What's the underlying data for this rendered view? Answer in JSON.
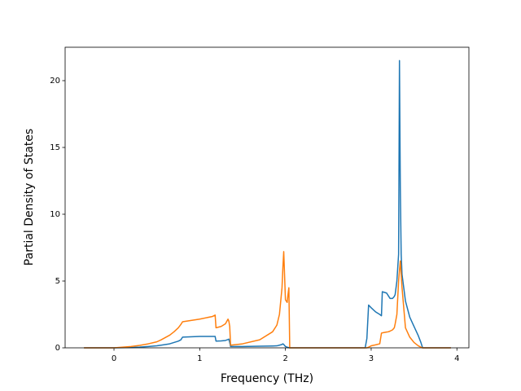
{
  "chart_data": {
    "type": "line",
    "x_label": "Frequency (THz)",
    "y_label": "Partial Density of States",
    "xlim": [
      -0.57,
      4.14
    ],
    "ylim": [
      0,
      22.5
    ],
    "xticks": [
      0,
      1,
      2,
      3,
      4
    ],
    "yticks": [
      0,
      5,
      10,
      15,
      20
    ],
    "x": [
      -0.35,
      0,
      0.2,
      0.3,
      0.4,
      0.5,
      0.55,
      0.65,
      0.7,
      0.75,
      0.78,
      0.8,
      1.0,
      1.15,
      1.18,
      1.19,
      1.25,
      1.3,
      1.33,
      1.34,
      1.35,
      1.36,
      1.5,
      1.7,
      1.85,
      1.9,
      1.93,
      1.96,
      1.97,
      1.98,
      2.0,
      2.02,
      2.03,
      2.04,
      2.05,
      2.93,
      2.95,
      2.97,
      3.0,
      3.05,
      3.1,
      3.12,
      3.13,
      3.18,
      3.2,
      3.22,
      3.25,
      3.27,
      3.28,
      3.3,
      3.32,
      3.33,
      3.34,
      3.35,
      3.36,
      3.4,
      3.45,
      3.5,
      3.55,
      3.58,
      3.6,
      3.93
    ],
    "series": [
      {
        "color": "#1f77b4",
        "values": [
          0,
          0,
          0.02,
          0.05,
          0.1,
          0.15,
          0.2,
          0.3,
          0.4,
          0.5,
          0.6,
          0.8,
          0.85,
          0.85,
          0.85,
          0.5,
          0.52,
          0.55,
          0.62,
          0.65,
          0.4,
          0.1,
          0.1,
          0.12,
          0.14,
          0.15,
          0.2,
          0.25,
          0.3,
          0.25,
          0.1,
          0.05,
          0.03,
          0.01,
          0,
          0,
          0.7,
          3.2,
          3.0,
          2.7,
          2.5,
          2.4,
          4.2,
          4.1,
          3.9,
          3.7,
          3.7,
          3.85,
          4.0,
          5.0,
          7.0,
          21.5,
          12,
          7,
          5.5,
          3.5,
          2.3,
          1.6,
          0.9,
          0.4,
          0,
          0
        ]
      },
      {
        "color": "#ff7f0e",
        "values": [
          0,
          0,
          0.1,
          0.18,
          0.3,
          0.45,
          0.6,
          0.95,
          1.2,
          1.5,
          1.75,
          1.95,
          2.15,
          2.35,
          2.45,
          1.5,
          1.6,
          1.8,
          2.15,
          2.0,
          1.6,
          0.2,
          0.3,
          0.6,
          1.2,
          1.7,
          2.5,
          4.5,
          6.0,
          7.2,
          3.6,
          3.4,
          4.0,
          4.5,
          0,
          0,
          0,
          0.05,
          0.15,
          0.22,
          0.3,
          1.1,
          1.12,
          1.18,
          1.2,
          1.25,
          1.35,
          1.5,
          1.8,
          2.5,
          5,
          5.8,
          6.5,
          5.5,
          4.5,
          1.5,
          0.8,
          0.4,
          0.15,
          0.05,
          0,
          0
        ]
      }
    ]
  }
}
